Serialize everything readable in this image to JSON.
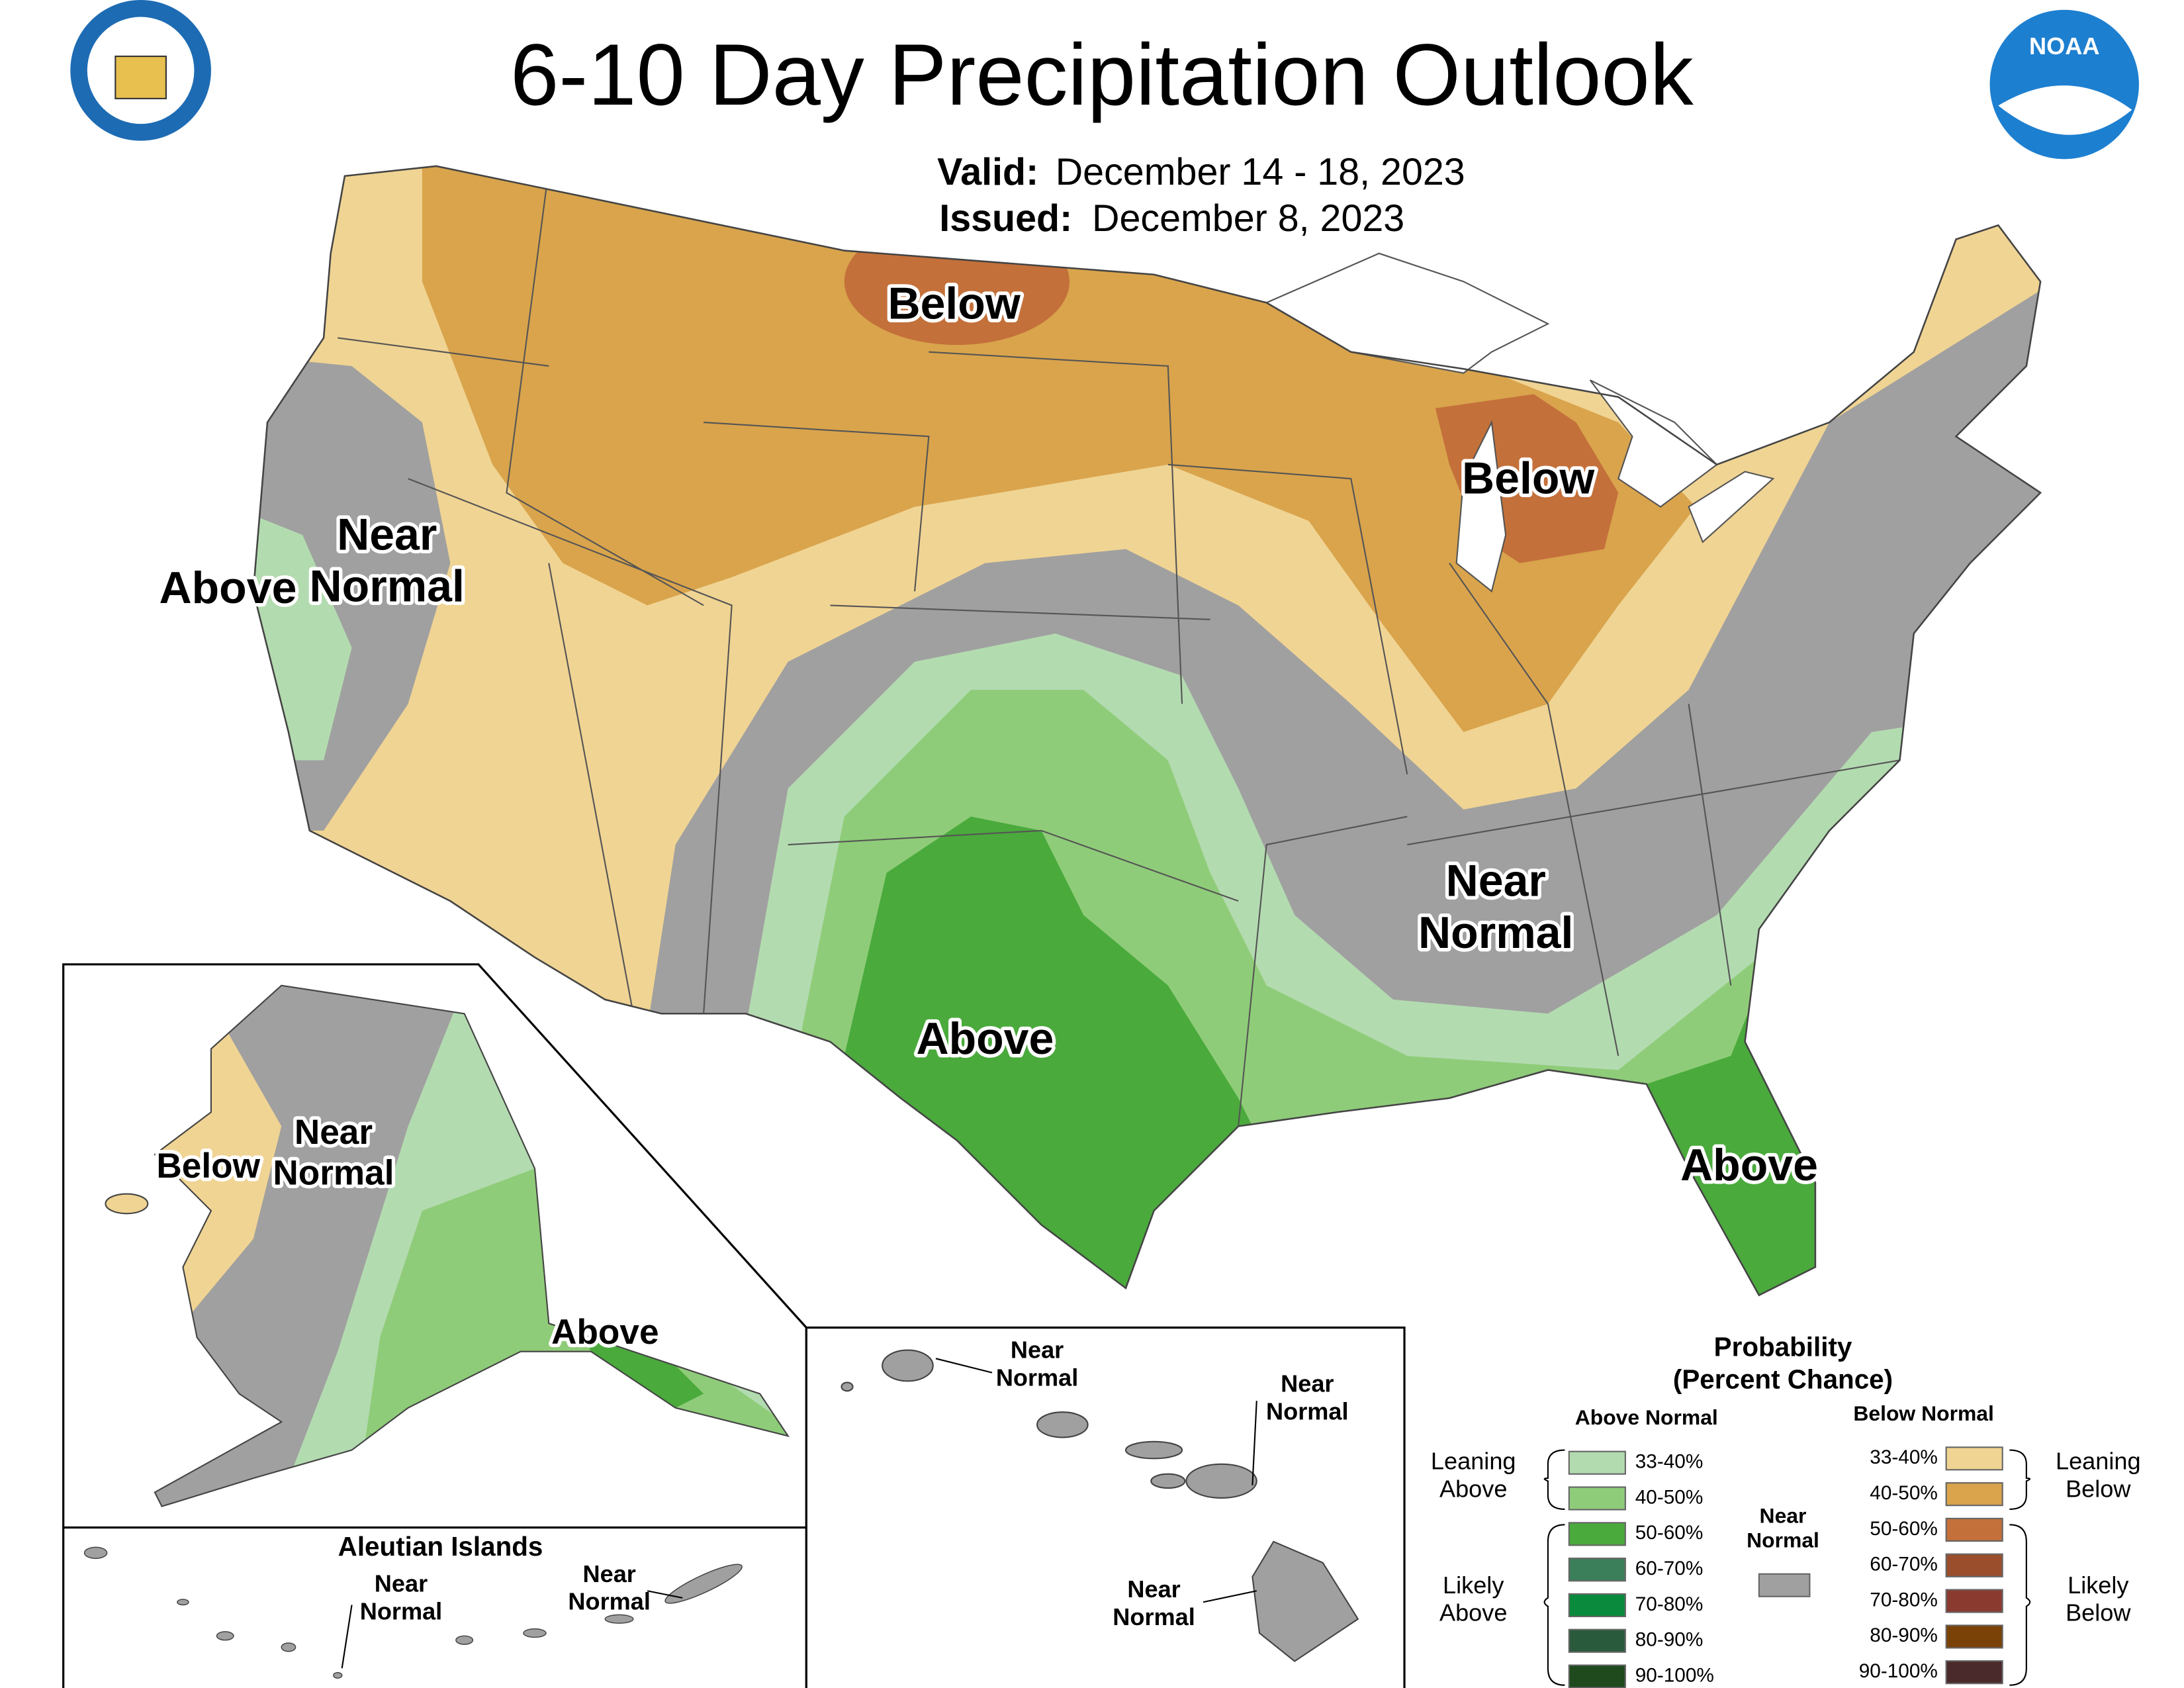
{
  "header": {
    "title": "6-10 Day Precipitation Outlook",
    "valid_label": "Valid:",
    "valid_dates": "December 14 - 18, 2023",
    "issued_label": "Issued:",
    "issued_date": "December 8, 2023",
    "noaa_logo": "NOAA"
  },
  "conus_labels": [
    [
      "Below"
    ],
    [
      "Below"
    ],
    [
      "Near",
      "Normal"
    ],
    [
      "Above"
    ],
    [
      "Near",
      "Normal"
    ],
    [
      "Above"
    ],
    [
      "Above"
    ]
  ],
  "alaska_labels": [
    [
      "Below"
    ],
    [
      "Near",
      "Normal"
    ],
    [
      "Above"
    ]
  ],
  "aleutian": {
    "title": "Aleutian Islands",
    "labels": [
      [
        "Near",
        "Normal"
      ],
      [
        "Near",
        "Normal"
      ]
    ]
  },
  "hawaii_labels": [
    [
      "Near",
      "Normal"
    ],
    [
      "Near",
      "Normal"
    ],
    [
      "Near",
      "Normal"
    ]
  ],
  "legend": {
    "title": [
      "Probability",
      "(Percent Chance)"
    ],
    "above_header": "Above Normal",
    "below_header": "Below Normal",
    "above": [
      {
        "label": "33-40%",
        "color": "#b3dbb0"
      },
      {
        "label": "40-50%",
        "color": "#8fcc79"
      },
      {
        "label": "50-60%",
        "color": "#4aaa3c"
      },
      {
        "label": "60-70%",
        "color": "#3b7f5a"
      },
      {
        "label": "70-80%",
        "color": "#0a8a3c"
      },
      {
        "label": "80-90%",
        "color": "#2a5a3c"
      },
      {
        "label": "90-100%",
        "color": "#1e4a1e"
      }
    ],
    "below": [
      {
        "label": "33-40%",
        "color": "#f0d493"
      },
      {
        "label": "40-50%",
        "color": "#d9a44c"
      },
      {
        "label": "50-60%",
        "color": "#c4703a"
      },
      {
        "label": "60-70%",
        "color": "#9a4e2c"
      },
      {
        "label": "70-80%",
        "color": "#8b3a30"
      },
      {
        "label": "80-90%",
        "color": "#7a4206"
      },
      {
        "label": "90-100%",
        "color": "#4a2a2a"
      }
    ],
    "near_normal": {
      "lines": [
        "Near",
        "Normal"
      ],
      "color": "#a0a0a0"
    },
    "leaning_above": [
      "Leaning",
      "Above"
    ],
    "likely_above": [
      "Likely",
      "Above"
    ],
    "leaning_below": [
      "Leaning",
      "Below"
    ],
    "likely_below": [
      "Likely",
      "Below"
    ]
  }
}
